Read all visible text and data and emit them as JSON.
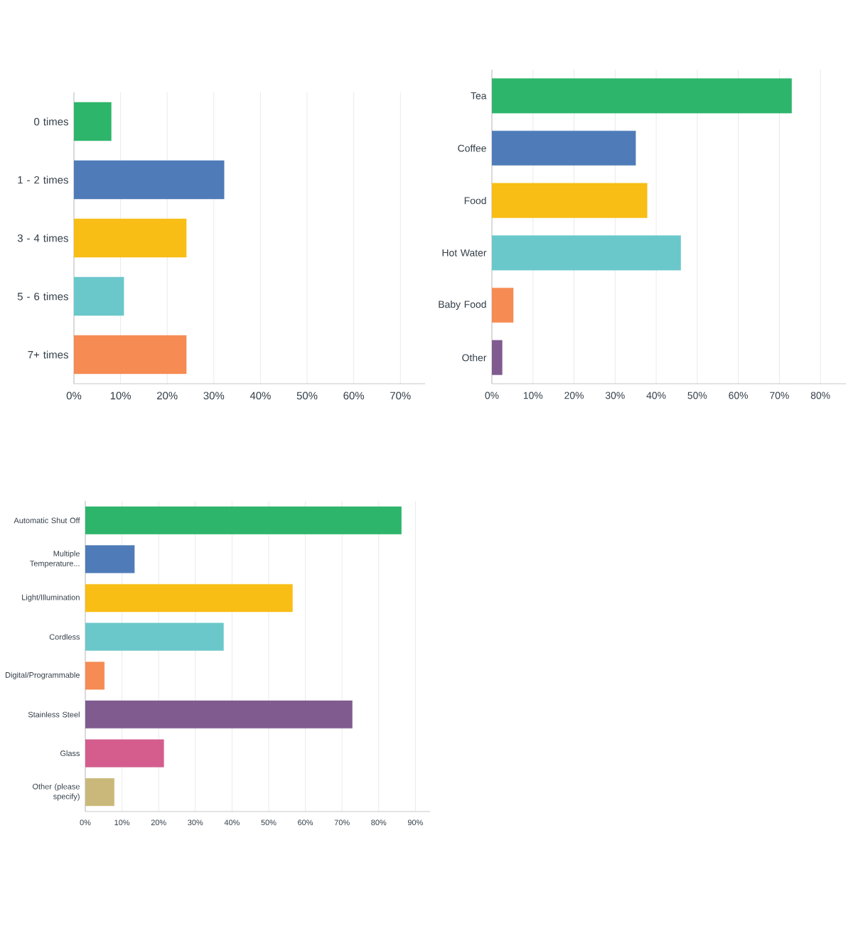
{
  "chart_data": [
    {
      "type": "bar",
      "orientation": "horizontal",
      "categories": [
        "0 times",
        "1 - 2 times",
        "3 - 4 times",
        "5 - 6 times",
        "7+ times"
      ],
      "values": [
        8.0,
        32.2,
        24.1,
        10.7,
        24.1
      ],
      "colors": [
        "#2db56b",
        "#4f7cb8",
        "#f8be15",
        "#6ac8cb",
        "#f68b53"
      ],
      "xlim": [
        0,
        75.3
      ],
      "xticks": [
        {
          "value": 0,
          "label": "0%"
        },
        {
          "value": 10,
          "label": "10%"
        },
        {
          "value": 20,
          "label": "20%"
        },
        {
          "value": 30,
          "label": "30%"
        },
        {
          "value": 40,
          "label": "40%"
        },
        {
          "value": 50,
          "label": "50%"
        },
        {
          "value": 60,
          "label": "60%"
        },
        {
          "value": 70,
          "label": "70%"
        }
      ],
      "grid": "x"
    },
    {
      "type": "bar",
      "orientation": "horizontal",
      "categories": [
        "Tea",
        "Coffee",
        "Food",
        "Hot Water",
        "Baby Food",
        "Other"
      ],
      "values": [
        73.0,
        35.0,
        37.8,
        46.0,
        5.2,
        2.5
      ],
      "colors": [
        "#2db56b",
        "#4f7cb8",
        "#f8be15",
        "#6ac8cb",
        "#f68b53",
        "#7f5b90"
      ],
      "xlim": [
        0,
        86.2
      ],
      "xticks": [
        {
          "value": 0,
          "label": "0%"
        },
        {
          "value": 10,
          "label": "10%"
        },
        {
          "value": 20,
          "label": "20%"
        },
        {
          "value": 30,
          "label": "30%"
        },
        {
          "value": 40,
          "label": "40%"
        },
        {
          "value": 50,
          "label": "50%"
        },
        {
          "value": 60,
          "label": "60%"
        },
        {
          "value": 70,
          "label": "70%"
        },
        {
          "value": 80,
          "label": "80%"
        }
      ],
      "grid": "x"
    },
    {
      "type": "bar",
      "orientation": "horizontal",
      "categories": [
        "Automatic Shut Off",
        "Multiple Temperature...",
        "Light/Illumination",
        "Cordless",
        "Digital/Programmable",
        "Stainless Steel",
        "Glass",
        "Other (please specify)"
      ],
      "values": [
        86.2,
        13.4,
        56.5,
        37.7,
        5.2,
        72.8,
        21.4,
        7.9
      ],
      "colors": [
        "#2db56b",
        "#4f7cb8",
        "#f8be15",
        "#6ac8cb",
        "#f68b53",
        "#7f5b90",
        "#d45d8e",
        "#c9b87a"
      ],
      "xlim": [
        0,
        94.0
      ],
      "xticks": [
        {
          "value": 0,
          "label": "0%"
        },
        {
          "value": 10,
          "label": "10%"
        },
        {
          "value": 20,
          "label": "20%"
        },
        {
          "value": 30,
          "label": "30%"
        },
        {
          "value": 40,
          "label": "40%"
        },
        {
          "value": 50,
          "label": "50%"
        },
        {
          "value": 60,
          "label": "60%"
        },
        {
          "value": 70,
          "label": "70%"
        },
        {
          "value": 80,
          "label": "80%"
        },
        {
          "value": 90,
          "label": "90%"
        }
      ],
      "grid": "x"
    }
  ]
}
